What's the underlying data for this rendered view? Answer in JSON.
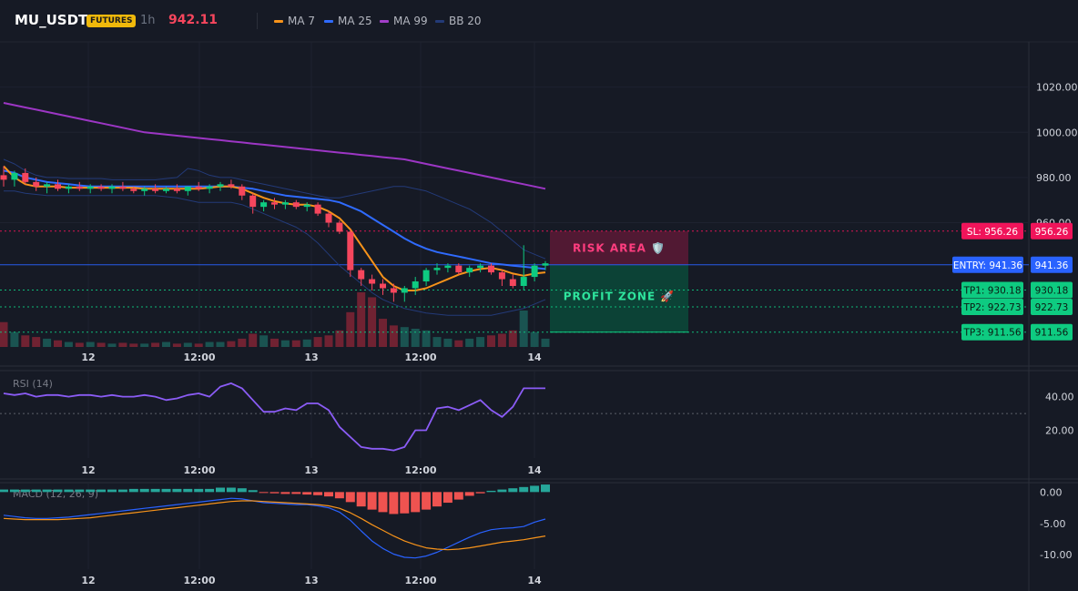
{
  "header": {
    "symbol": "MU_USDT",
    "badge": "FUTURES",
    "timeframe": "1h",
    "price": "942.11",
    "price_color": "#f6465d",
    "legend": [
      {
        "label": "MA 7",
        "color": "#f7931a"
      },
      {
        "label": "MA 25",
        "color": "#2f6bff"
      },
      {
        "label": "MA 99",
        "color": "#a23ec9"
      },
      {
        "label": "BB 20",
        "color": "#233a78"
      }
    ]
  },
  "levels": [
    {
      "name": "sl",
      "label": "SL: 956.26",
      "value_text": "956.26",
      "value": 956.26,
      "color": "#f0145a",
      "text_color": "#ffffff"
    },
    {
      "name": "entry",
      "label": "ENTRY: 941.36",
      "value_text": "941.36",
      "value": 941.36,
      "color": "#2962ff",
      "text_color": "#ffffff"
    },
    {
      "name": "tp1",
      "label": "TP1: 930.18",
      "value_text": "930.18",
      "value": 930.18,
      "color": "#0ecb81",
      "text_color": "#0b1a12"
    },
    {
      "name": "tp2",
      "label": "TP2: 922.73",
      "value_text": "922.73",
      "value": 922.73,
      "color": "#0ecb81",
      "text_color": "#0b1a12"
    },
    {
      "name": "tp3",
      "label": "TP3: 911.56",
      "value_text": "911.56",
      "value": 911.56,
      "color": "#0ecb81",
      "text_color": "#0b1a12"
    }
  ],
  "zones": {
    "risk": "RISK AREA 🛡️",
    "profit": "PROFIT ZONE 🚀"
  },
  "chart_data": [
    {
      "type": "candlestick",
      "title": "MU_USDT 1h",
      "x_ticks": [
        "12",
        "12:00",
        "13",
        "12:00",
        "14"
      ],
      "y_ticks": [
        "1020.00",
        "1000.00",
        "980.00",
        "960.00"
      ],
      "ylim": [
        905,
        1040
      ],
      "candles": [
        [
          981,
          985,
          976,
          979
        ],
        [
          979,
          983,
          976,
          982
        ],
        [
          982,
          984,
          977,
          978
        ],
        [
          978,
          980,
          974,
          976
        ],
        [
          976,
          978,
          973,
          977
        ],
        [
          977,
          979,
          974,
          975
        ],
        [
          975,
          977,
          973,
          976
        ],
        [
          976,
          978,
          974,
          975
        ],
        [
          975,
          977,
          973,
          976
        ],
        [
          976,
          977,
          974,
          975
        ],
        [
          975,
          977,
          973,
          976
        ],
        [
          976,
          978,
          974,
          975
        ],
        [
          975,
          976,
          973,
          974
        ],
        [
          974,
          976,
          972,
          975
        ],
        [
          975,
          977,
          973,
          974
        ],
        [
          974,
          976,
          973,
          975
        ],
        [
          975,
          977,
          973,
          974
        ],
        [
          974,
          976,
          972,
          976
        ],
        [
          976,
          978,
          974,
          975
        ],
        [
          975,
          977,
          973,
          976
        ],
        [
          976,
          978,
          974,
          977
        ],
        [
          977,
          979,
          975,
          976
        ],
        [
          976,
          977,
          970,
          972
        ],
        [
          972,
          973,
          964,
          967
        ],
        [
          967,
          970,
          965,
          969
        ],
        [
          969,
          971,
          966,
          968
        ],
        [
          968,
          970,
          966,
          969
        ],
        [
          969,
          970,
          966,
          967
        ],
        [
          967,
          969,
          965,
          968
        ],
        [
          968,
          969,
          963,
          964
        ],
        [
          964,
          965,
          958,
          960
        ],
        [
          960,
          961,
          955,
          956
        ],
        [
          956,
          957,
          936,
          939
        ],
        [
          939,
          940,
          932,
          935
        ],
        [
          935,
          937,
          930,
          933
        ],
        [
          933,
          935,
          928,
          931
        ],
        [
          931,
          933,
          925,
          929
        ],
        [
          929,
          932,
          925,
          931
        ],
        [
          931,
          936,
          928,
          934
        ],
        [
          934,
          940,
          932,
          939
        ],
        [
          939,
          942,
          937,
          940
        ],
        [
          940,
          942,
          938,
          941
        ],
        [
          941,
          942,
          937,
          938
        ],
        [
          938,
          941,
          936,
          940
        ],
        [
          940,
          942,
          938,
          941
        ],
        [
          941,
          942,
          937,
          938
        ],
        [
          938,
          939,
          932,
          935
        ],
        [
          935,
          937,
          931,
          932
        ],
        [
          932,
          950,
          930,
          936
        ],
        [
          936,
          942,
          934,
          941
        ],
        [
          941,
          943,
          939,
          942
        ]
      ],
      "ma7": [
        985,
        980,
        977,
        976,
        976,
        976,
        975.5,
        975.5,
        975.5,
        975.5,
        975.5,
        975.5,
        975.5,
        975,
        975,
        975,
        975,
        975,
        975,
        975.5,
        976,
        976,
        975,
        973,
        971,
        969.5,
        968.5,
        968,
        968,
        967,
        965,
        962,
        957,
        950,
        943,
        936,
        932,
        930,
        930,
        931,
        933,
        935,
        937,
        938.5,
        939.5,
        940,
        939,
        937.5,
        936.5,
        937.5,
        938
      ],
      "ma25": [
        983,
        982,
        980,
        979,
        978,
        977.5,
        977,
        976.5,
        976,
        976,
        976,
        976,
        976,
        976,
        976,
        976,
        976,
        976,
        976,
        976,
        976,
        976,
        975.5,
        975,
        974,
        973,
        972,
        971.5,
        971,
        970.5,
        970,
        969,
        967,
        965,
        962,
        959,
        956,
        953,
        950.5,
        948.5,
        947,
        946,
        945,
        944,
        943,
        942,
        941.5,
        941,
        940.5,
        940,
        939.5
      ],
      "ma99": [
        1013,
        1012,
        1011,
        1010,
        1009,
        1008,
        1007,
        1006,
        1005,
        1004,
        1003,
        1002,
        1001,
        1000,
        999.5,
        999,
        998.5,
        998,
        997.5,
        997,
        996.5,
        996,
        995.5,
        995,
        994.5,
        994,
        993.5,
        993,
        992.5,
        992,
        991.5,
        991,
        990.5,
        990,
        989.5,
        989,
        988.5,
        988,
        987,
        986,
        985,
        984,
        983,
        982,
        981,
        980,
        979,
        978,
        977,
        976,
        975
      ],
      "bb_upper": [
        988,
        986,
        983,
        981,
        980,
        980,
        979.5,
        979.5,
        979.5,
        979.5,
        979,
        979,
        979,
        979,
        979,
        979.5,
        980,
        984,
        983,
        981,
        980,
        980,
        979,
        978,
        977,
        976,
        975,
        974,
        973,
        972,
        971,
        971,
        972,
        973,
        974,
        975,
        976,
        976,
        975,
        974,
        972,
        970,
        968,
        966,
        963,
        960,
        956,
        952,
        948,
        946,
        944
      ],
      "bb_lower": [
        974,
        974,
        973,
        972.5,
        972,
        972,
        972,
        972,
        972,
        972,
        972,
        972,
        972,
        972,
        972,
        971.5,
        971,
        970,
        969,
        969,
        969,
        969,
        968,
        966,
        964,
        962,
        960,
        958,
        955,
        951,
        946,
        941,
        937,
        933,
        929,
        926,
        924,
        922,
        921,
        920,
        919.5,
        919,
        919,
        919,
        919,
        919,
        920,
        921,
        922,
        924,
        926
      ],
      "volume": [
        30,
        18,
        14,
        12,
        10,
        8,
        6,
        5,
        6,
        5,
        4,
        5,
        4,
        4,
        5,
        6,
        4,
        5,
        4,
        6,
        6,
        7,
        10,
        16,
        14,
        10,
        8,
        8,
        9,
        12,
        14,
        20,
        42,
        66,
        60,
        34,
        26,
        24,
        22,
        20,
        12,
        10,
        8,
        10,
        12,
        14,
        16,
        20,
        44,
        18,
        10
      ],
      "volume_up": [
        0,
        1,
        0,
        0,
        1,
        0,
        1,
        0,
        1,
        0,
        1,
        0,
        0,
        1,
        0,
        1,
        0,
        1,
        0,
        1,
        1,
        0,
        0,
        0,
        1,
        0,
        1,
        0,
        1,
        0,
        0,
        0,
        0,
        0,
        0,
        0,
        0,
        1,
        1,
        1,
        1,
        1,
        0,
        1,
        1,
        0,
        0,
        0,
        1,
        1,
        1
      ]
    },
    {
      "type": "line",
      "title": "RSI (14)",
      "y_ticks": [
        "40.00",
        "20.00"
      ],
      "ylim": [
        4,
        55
      ],
      "midline": 30,
      "values": [
        42,
        41,
        42,
        40,
        41,
        41,
        40,
        41,
        41,
        40,
        41,
        40,
        40,
        41,
        40,
        38,
        39,
        41,
        42,
        40,
        46,
        48,
        45,
        38,
        31,
        31,
        33,
        32,
        36,
        36,
        32,
        22,
        16,
        10,
        9,
        9,
        8,
        10,
        20,
        20,
        33,
        34,
        32,
        35,
        38,
        32,
        28,
        34,
        45,
        45,
        45
      ]
    },
    {
      "type": "macd",
      "title": "MACD (12, 26, 9)",
      "y_ticks": [
        "0.00",
        "-5.00",
        "-10.00"
      ],
      "ylim": [
        -12,
        1.5
      ],
      "histogram": [
        0.4,
        0.4,
        0.4,
        0.4,
        0.4,
        0.4,
        0.4,
        0.4,
        0.4,
        0.4,
        0.4,
        0.4,
        0.5,
        0.5,
        0.5,
        0.5,
        0.5,
        0.5,
        0.5,
        0.5,
        0.7,
        0.7,
        0.6,
        0.3,
        -0.1,
        -0.2,
        -0.3,
        -0.3,
        -0.4,
        -0.5,
        -0.7,
        -1,
        -1.6,
        -2.3,
        -2.8,
        -3.2,
        -3.5,
        -3.4,
        -3.2,
        -2.8,
        -2.3,
        -1.7,
        -1.2,
        -0.6,
        -0.2,
        0.2,
        0.4,
        0.6,
        0.8,
        1.0,
        1.2
      ],
      "macd": [
        -3.7,
        -3.9,
        -4.1,
        -4.2,
        -4.2,
        -4.1,
        -4.0,
        -3.8,
        -3.6,
        -3.4,
        -3.2,
        -3.0,
        -2.8,
        -2.6,
        -2.4,
        -2.2,
        -2.0,
        -1.8,
        -1.6,
        -1.4,
        -1.2,
        -1.0,
        -1.1,
        -1.4,
        -1.7,
        -1.8,
        -1.9,
        -2.0,
        -2.0,
        -2.2,
        -2.5,
        -3.2,
        -4.5,
        -6.2,
        -7.8,
        -9.0,
        -9.9,
        -10.4,
        -10.5,
        -10.2,
        -9.6,
        -8.8,
        -8.0,
        -7.2,
        -6.5,
        -6.0,
        -5.8,
        -5.7,
        -5.5,
        -4.8,
        -4.3
      ],
      "signal": [
        -4.2,
        -4.3,
        -4.4,
        -4.4,
        -4.4,
        -4.4,
        -4.3,
        -4.2,
        -4.1,
        -3.9,
        -3.7,
        -3.5,
        -3.3,
        -3.1,
        -2.9,
        -2.7,
        -2.5,
        -2.3,
        -2.1,
        -1.9,
        -1.7,
        -1.5,
        -1.4,
        -1.4,
        -1.5,
        -1.6,
        -1.7,
        -1.8,
        -1.9,
        -2.0,
        -2.2,
        -2.6,
        -3.3,
        -4.2,
        -5.2,
        -6.1,
        -7.0,
        -7.8,
        -8.4,
        -8.9,
        -9.1,
        -9.2,
        -9.1,
        -8.9,
        -8.6,
        -8.3,
        -8.0,
        -7.8,
        -7.6,
        -7.3,
        -7.0
      ]
    }
  ]
}
